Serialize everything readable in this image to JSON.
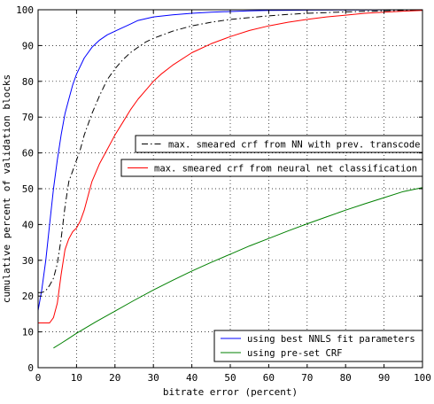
{
  "chart_data": {
    "type": "line",
    "title": "",
    "xlabel": "bitrate error (percent)",
    "ylabel": "cumulative percent of validation blocks",
    "xlim": [
      0,
      100
    ],
    "ylim": [
      0,
      100
    ],
    "xticks": [
      0,
      10,
      20,
      30,
      40,
      50,
      60,
      70,
      80,
      90,
      100
    ],
    "yticks": [
      0,
      10,
      20,
      30,
      40,
      50,
      60,
      70,
      80,
      90,
      100
    ],
    "grid": true,
    "legends": [
      {
        "placement": "upper-middle-right",
        "entries": [
          {
            "series": 1,
            "label": "max. smeared crf from NN with prev. transcode"
          },
          {
            "series": 2,
            "label": "max. smeared crf from neural net classification"
          }
        ]
      },
      {
        "placement": "bottom-right",
        "entries": [
          {
            "series": 0,
            "label": "using best NNLS fit parameters"
          },
          {
            "series": 3,
            "label": "using pre-set CRF"
          }
        ]
      }
    ],
    "series": [
      {
        "color": "#0000ff",
        "dash": "solid",
        "x": [
          0,
          0.5,
          1,
          2,
          3,
          4,
          5,
          6,
          7,
          8,
          9,
          10,
          12,
          14,
          16,
          18,
          20,
          22,
          24,
          26,
          28,
          30,
          35,
          40,
          45,
          50,
          55,
          60,
          65,
          70,
          80,
          90,
          100
        ],
        "y": [
          16,
          19,
          22,
          30,
          40,
          50,
          58,
          65,
          71,
          75,
          79,
          82,
          86.5,
          89.5,
          91.5,
          93,
          94,
          95,
          96,
          97,
          97.5,
          98,
          98.6,
          99,
          99.3,
          99.5,
          99.7,
          99.8,
          99.85,
          99.9,
          99.95,
          99.98,
          100
        ]
      },
      {
        "color": "#000000",
        "dash": "dashdot",
        "x": [
          0,
          1,
          2,
          3,
          4,
          5,
          6,
          7,
          8,
          9,
          10,
          11,
          12,
          14,
          16,
          18,
          20,
          22,
          24,
          26,
          28,
          30,
          35,
          40,
          45,
          50,
          55,
          60,
          65,
          70,
          80,
          90,
          100
        ],
        "y": [
          21,
          21,
          21.5,
          23,
          25,
          29,
          36,
          45,
          52,
          55,
          58,
          61,
          65,
          71,
          76,
          80.5,
          83.5,
          86,
          88,
          89.5,
          91,
          92,
          94,
          95.5,
          96.5,
          97.3,
          97.8,
          98.3,
          98.7,
          99,
          99.4,
          99.7,
          99.9
        ]
      },
      {
        "color": "#ff0000",
        "dash": "solid",
        "x": [
          0,
          1,
          2,
          3,
          4,
          5,
          6,
          7,
          8,
          9,
          10,
          11,
          12,
          13,
          14,
          16,
          18,
          20,
          22,
          24,
          26,
          28,
          30,
          32,
          35,
          40,
          45,
          50,
          55,
          60,
          65,
          70,
          75,
          80,
          85,
          90,
          95,
          100
        ],
        "y": [
          12.5,
          12.5,
          12.5,
          12.5,
          14,
          18,
          26,
          33,
          36,
          38,
          39,
          41,
          44,
          48,
          52,
          57,
          61,
          65,
          68.5,
          72,
          75,
          77.5,
          80,
          82,
          84.5,
          88,
          90.5,
          92.5,
          94.2,
          95.5,
          96.5,
          97.3,
          98,
          98.5,
          99,
          99.3,
          99.6,
          99.8
        ]
      },
      {
        "color": "#008000",
        "dash": "solid",
        "x": [
          4,
          6,
          8,
          10,
          15,
          20,
          25,
          30,
          35,
          40,
          45,
          50,
          55,
          60,
          65,
          70,
          75,
          80,
          85,
          90,
          95,
          100
        ],
        "y": [
          5.5,
          6.8,
          8.2,
          9.6,
          12.8,
          15.8,
          18.8,
          21.7,
          24.4,
          27,
          29.4,
          31.7,
          34,
          36.1,
          38.2,
          40.2,
          42.1,
          44,
          45.8,
          47.5,
          49.2,
          50.3
        ]
      }
    ]
  }
}
